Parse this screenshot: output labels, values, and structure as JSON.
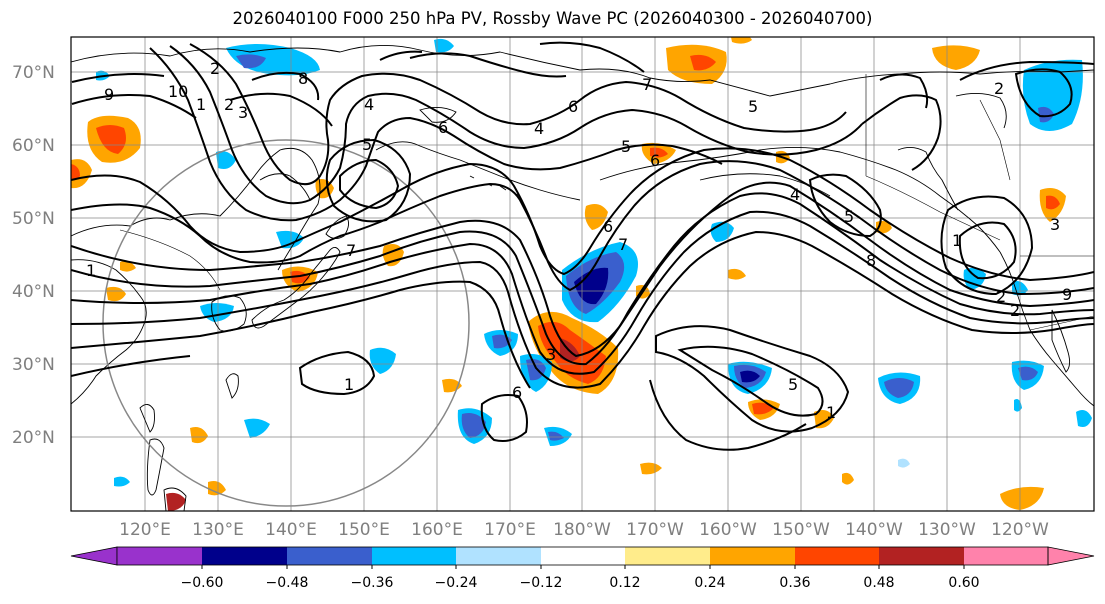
{
  "title": "2026040100 F000 250 hPa PV, Rossby Wave PC (2026040300 - 2026040700)",
  "lat_labels": [
    "70°N",
    "60°N",
    "50°N",
    "40°N",
    "30°N",
    "20°N"
  ],
  "lon_labels": [
    "120°E",
    "130°E",
    "140°E",
    "150°E",
    "160°E",
    "170°E",
    "180°W",
    "170°W",
    "160°W",
    "150°W",
    "140°W",
    "130°W",
    "120°W"
  ],
  "colorbar": {
    "ticks": [
      "−0.60",
      "−0.48",
      "−0.36",
      "−0.24",
      "−0.12",
      "0.12",
      "0.24",
      "0.36",
      "0.48",
      "0.60"
    ],
    "colors": [
      "#9932cc",
      "#00008b",
      "#3a5fcd",
      "#00bfff",
      "#b0e2ff",
      "#ffffff",
      "#ffec8b",
      "#ffa500",
      "#ff4500",
      "#b22222",
      "#ff82ab"
    ]
  },
  "contour_labels": [
    "9",
    "10",
    "1",
    "2",
    "3",
    "4",
    "5",
    "6",
    "7",
    "8",
    "2",
    "1",
    "3",
    "4",
    "5",
    "6",
    "7",
    "6",
    "5",
    "4",
    "5",
    "6",
    "7",
    "8",
    "9",
    "2",
    "1",
    "3",
    "2",
    "1",
    "6",
    "5",
    "1",
    "2",
    "3",
    "4"
  ]
}
